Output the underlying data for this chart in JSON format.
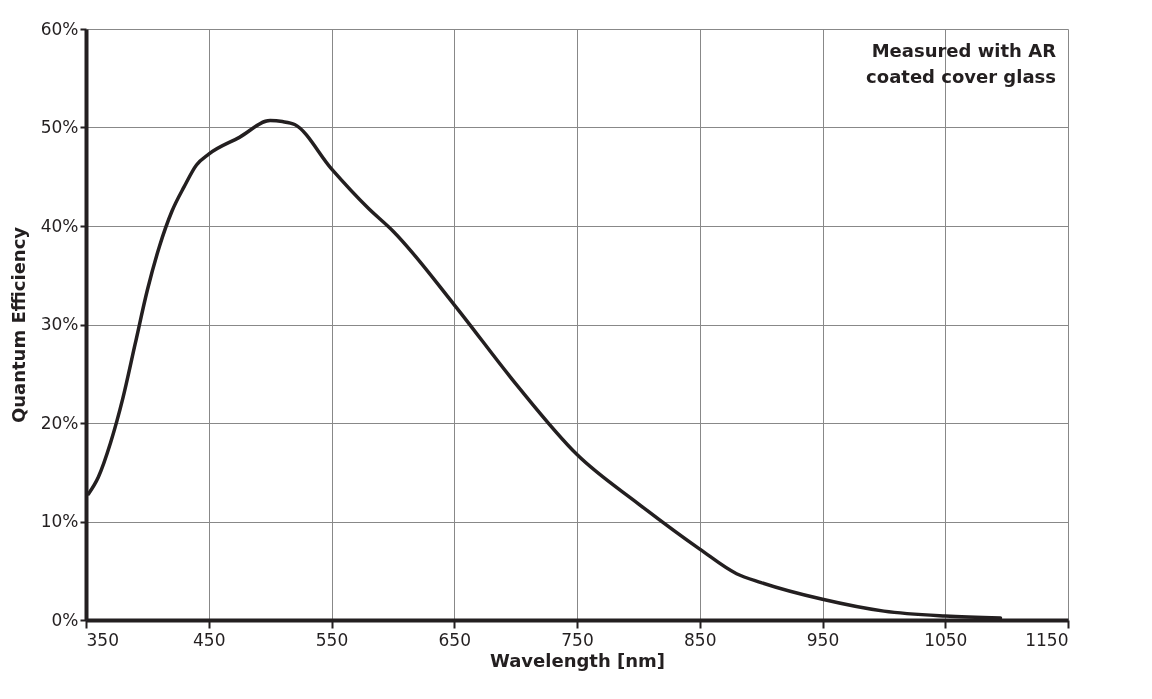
{
  "chart_data": {
    "type": "line",
    "xlabel": "Wavelength [nm]",
    "ylabel": "Quantum Efficiency",
    "annotations": [
      "Measured with AR\ncoated cover glass"
    ],
    "x": [
      352,
      360,
      370,
      380,
      390,
      400,
      410,
      420,
      430,
      440,
      450,
      475,
      500,
      510,
      520,
      550,
      580,
      600,
      650,
      700,
      750,
      800,
      850,
      880,
      900,
      950,
      1000,
      1050,
      1095
    ],
    "series": [
      {
        "color": "#231f20",
        "values": [
          12.8,
          14.5,
          18,
          22.5,
          28,
          33.5,
          38,
          41.5,
          44,
          46.2,
          47.3,
          49,
          50.7,
          50.6,
          50.3,
          45.8,
          41.8,
          39.5,
          32,
          24,
          16.8,
          11.8,
          7.2,
          4.7,
          3.8,
          2.1,
          0.9,
          0.4,
          0.2
        ]
      }
    ],
    "xlim": [
      350,
      1150
    ],
    "xticks": [
      350,
      450,
      550,
      650,
      750,
      850,
      950,
      1050,
      1150
    ],
    "ylim": [
      0,
      60
    ],
    "yticks": [
      {
        "value": 0,
        "label": "0%"
      },
      {
        "value": 10,
        "label": "10%"
      },
      {
        "value": 20,
        "label": "20%"
      },
      {
        "value": 30,
        "label": "30%"
      },
      {
        "value": 40,
        "label": "40%"
      },
      {
        "value": 50,
        "label": "50%"
      },
      {
        "value": 60,
        "label": "60%"
      }
    ],
    "grid": true,
    "marker": "none",
    "line_style": "solid"
  }
}
